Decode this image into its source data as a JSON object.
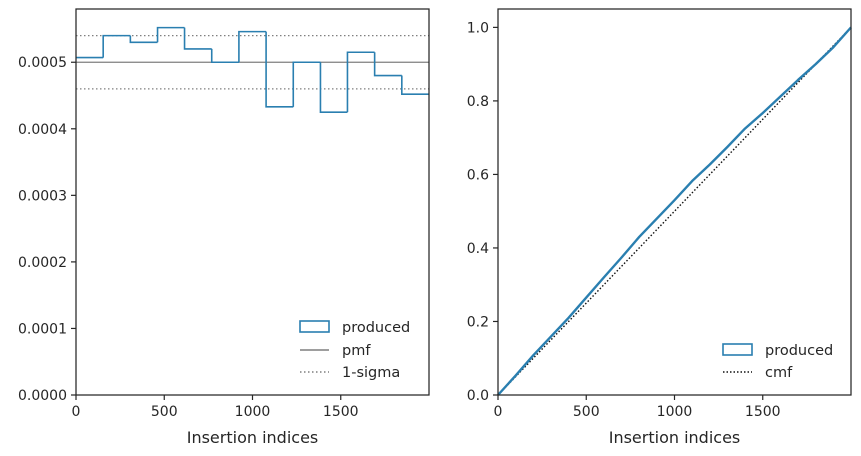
{
  "colors": {
    "produced": "#2a7fb0",
    "pmf": "#7f7f7f",
    "sigma": "#7f7f7f",
    "cmf": "#111111",
    "axis": "#262626"
  },
  "chart_data": [
    {
      "type": "histogram",
      "xlabel": "Insertion indices",
      "ylabel": "",
      "xlim": [
        0,
        2000
      ],
      "ylim": [
        0,
        0.00058
      ],
      "xticks": [
        0,
        500,
        1000,
        1500
      ],
      "xtick_labels": [
        "0",
        "500",
        "1000",
        "1500"
      ],
      "yticks": [
        0,
        0.0001,
        0.0002,
        0.0003,
        0.0004,
        0.0005
      ],
      "ytick_labels": [
        "0.0000",
        "0.0001",
        "0.0002",
        "0.0003",
        "0.0004",
        "0.0005"
      ],
      "bin_edges": [
        0,
        154,
        308,
        462,
        615,
        769,
        923,
        1077,
        1231,
        1385,
        1538,
        1692,
        1846,
        2000
      ],
      "values": [
        0.000507,
        0.00054,
        0.00053,
        0.000552,
        0.00052,
        0.0005,
        0.000546,
        0.000433,
        0.0005,
        0.000425,
        0.000515,
        0.00048,
        0.000452
      ],
      "pmf": 0.0005,
      "sigma_band": [
        0.00046,
        0.00054
      ],
      "legend": [
        "produced",
        "pmf",
        "1-sigma"
      ],
      "legend_position": "lower right",
      "grid": false
    },
    {
      "type": "line",
      "xlabel": "Insertion indices",
      "ylabel": "",
      "xlim": [
        0,
        2000
      ],
      "ylim": [
        0,
        1.05
      ],
      "xticks": [
        0,
        500,
        1000,
        1500
      ],
      "xtick_labels": [
        "0",
        "500",
        "1000",
        "1500"
      ],
      "yticks": [
        0,
        0.2,
        0.4,
        0.6,
        0.8,
        1.0
      ],
      "ytick_labels": [
        "0.0",
        "0.2",
        "0.4",
        "0.6",
        "0.8",
        "1.0"
      ],
      "series": [
        {
          "name": "produced",
          "x": [
            0,
            100,
            200,
            300,
            400,
            500,
            600,
            700,
            800,
            900,
            1000,
            1100,
            1200,
            1300,
            1400,
            1500,
            1600,
            1700,
            1800,
            1900,
            2000
          ],
          "y": [
            0,
            0.053,
            0.108,
            0.159,
            0.21,
            0.265,
            0.32,
            0.374,
            0.43,
            0.48,
            0.53,
            0.582,
            0.627,
            0.675,
            0.725,
            0.767,
            0.812,
            0.857,
            0.9,
            0.946,
            1.0
          ]
        },
        {
          "name": "cmf",
          "x": [
            0,
            2000
          ],
          "y": [
            0,
            1.0
          ]
        }
      ],
      "legend": [
        "produced",
        "cmf"
      ],
      "legend_position": "lower right",
      "grid": false
    }
  ]
}
